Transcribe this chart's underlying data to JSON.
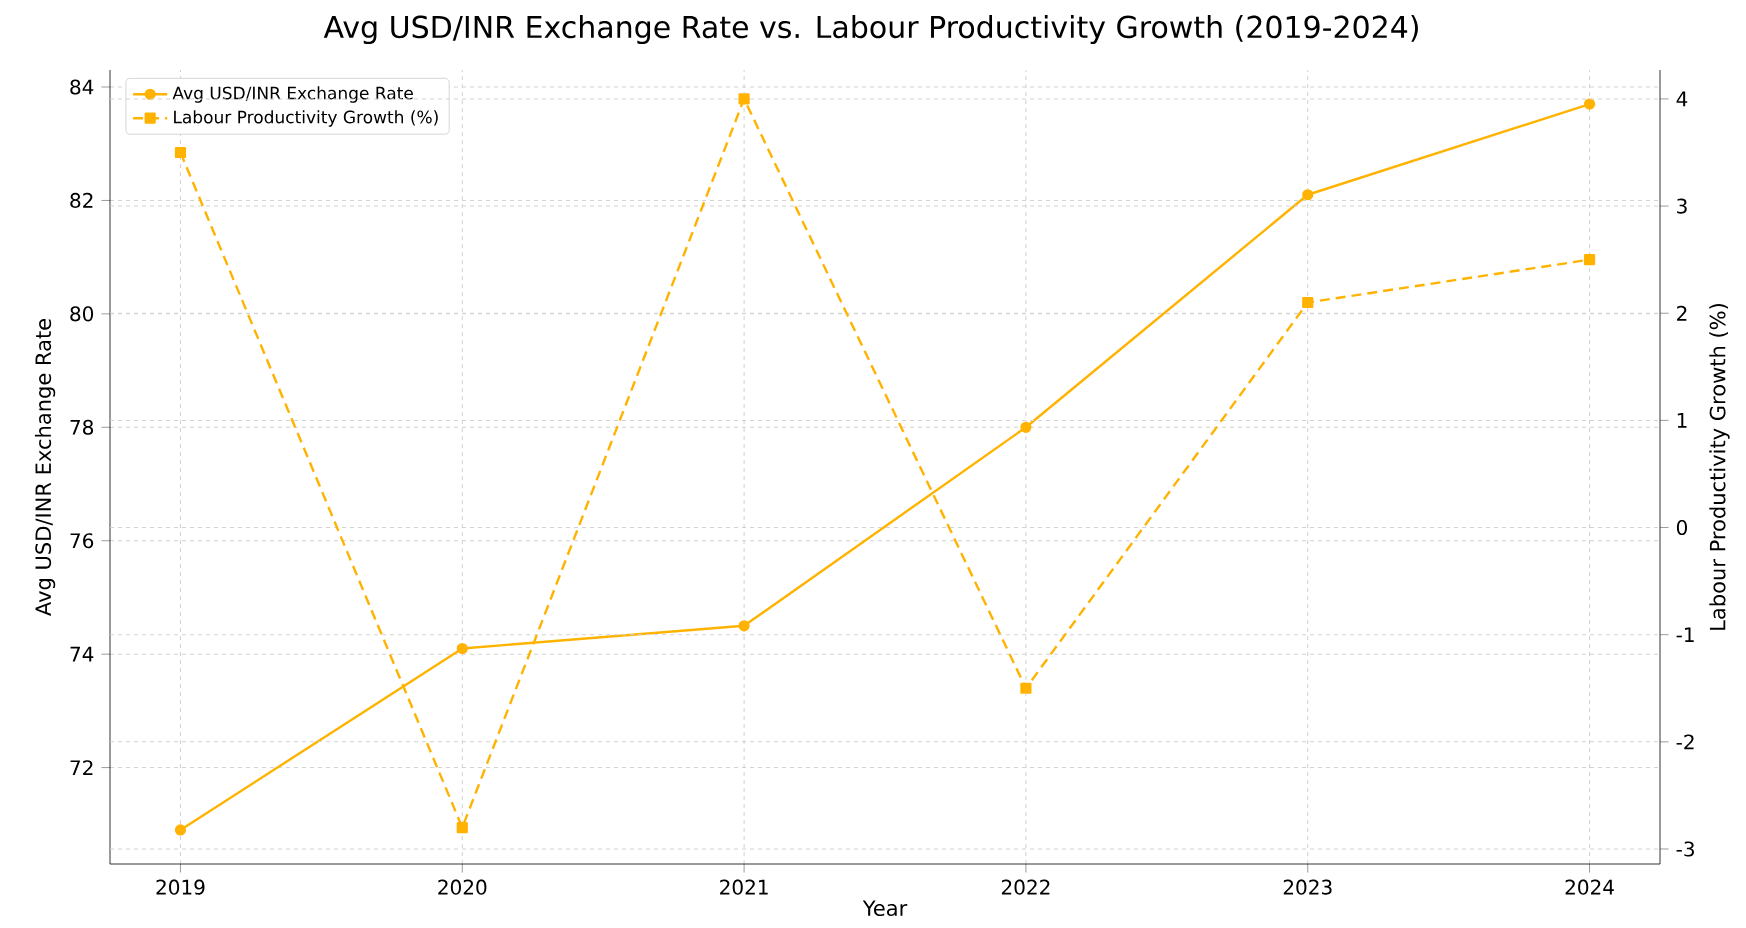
{
  "chart_data": {
    "type": "line",
    "title": "Avg USD/INR Exchange Rate vs. Labour Productivity Growth (2019-2024)",
    "xlabel": "Year",
    "ylabel": "Avg USD/INR Exchange Rate",
    "y2label": "Labour Productivity Growth (%)",
    "x": [
      2019,
      2020,
      2021,
      2022,
      2023,
      2024
    ],
    "xlim": [
      2018.75,
      2024.25
    ],
    "xticks": [
      2019,
      2020,
      2021,
      2022,
      2023,
      2024
    ],
    "ylim": [
      70.3,
      84.3
    ],
    "yticks": [
      72,
      74,
      76,
      78,
      80,
      82,
      84
    ],
    "y2lim": [
      -3.14,
      4.27
    ],
    "y2ticks": [
      -3,
      -2,
      -1,
      0,
      1,
      2,
      3,
      4
    ],
    "grid": true,
    "legend": "top left",
    "series": [
      {
        "name": "Avg USD/INR Exchange Rate",
        "color": "#ffb300",
        "values": [
          70.9,
          74.1,
          74.5,
          78.0,
          82.1,
          83.7
        ],
        "marker": "circle",
        "line_style": "solid"
      },
      {
        "name": "Labour Productivity Growth (%)",
        "color": "#ffb300",
        "values": [
          3.5,
          -2.8,
          4.0,
          -1.5,
          2.1,
          2.5
        ],
        "marker": "square",
        "line_style": "dashed",
        "axis": "y2"
      }
    ]
  }
}
